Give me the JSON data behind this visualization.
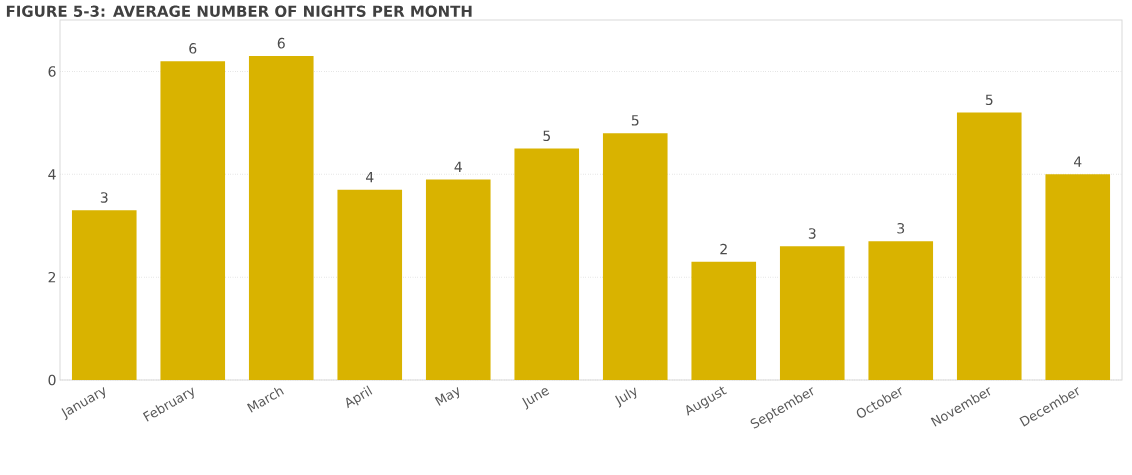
{
  "chart_data": {
    "type": "bar",
    "title": "FIGURE 5-3: AVERAGE NUMBER OF NIGHTS PER MONTH",
    "categories": [
      "January",
      "February",
      "March",
      "April",
      "May",
      "June",
      "July",
      "August",
      "September",
      "October",
      "November",
      "December"
    ],
    "values": [
      3.3,
      6.2,
      6.3,
      3.7,
      3.9,
      4.5,
      4.8,
      2.3,
      2.6,
      2.7,
      5.2,
      4.0
    ],
    "value_labels": [
      "3",
      "6",
      "6",
      "4",
      "4",
      "5",
      "5",
      "2",
      "3",
      "3",
      "5",
      "4"
    ],
    "color": "#d9b300",
    "ylim": [
      0,
      7
    ],
    "yticks": [
      0,
      2,
      4,
      6
    ],
    "grid": "y"
  }
}
